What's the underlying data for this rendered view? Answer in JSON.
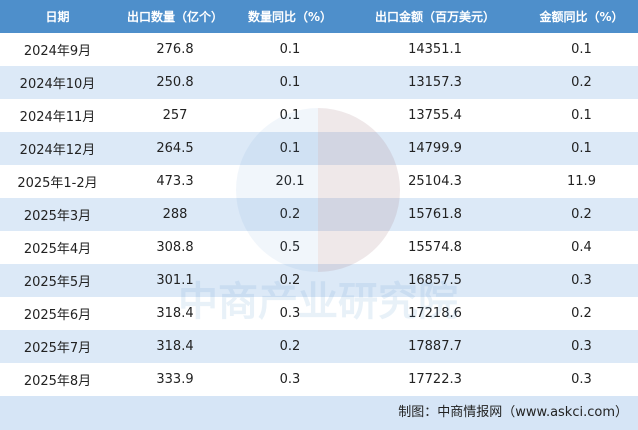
{
  "table": {
    "header": [
      "日期",
      "出口数量（亿个）",
      "数量同比（%）",
      "出口金额（百万美元）",
      "金额同比（%）"
    ],
    "rows": [
      [
        "2024年9月",
        "276.8",
        "0.1",
        "14351.1",
        "0.1"
      ],
      [
        "2024年10月",
        "250.8",
        "0.1",
        "13157.3",
        "0.2"
      ],
      [
        "2024年11月",
        "257",
        "0.1",
        "13755.4",
        "0.1"
      ],
      [
        "2024年12月",
        "264.5",
        "0.1",
        "14799.9",
        "0.1"
      ],
      [
        "2025年1-2月",
        "473.3",
        "20.1",
        "25104.3",
        "11.9"
      ],
      [
        "2025年3月",
        "288",
        "0.2",
        "15761.8",
        "0.2"
      ],
      [
        "2025年4月",
        "308.8",
        "0.5",
        "15574.8",
        "0.4"
      ],
      [
        "2025年5月",
        "301.1",
        "0.2",
        "16857.5",
        "0.3"
      ],
      [
        "2025年6月",
        "318.4",
        "0.3",
        "17218.6",
        "0.2"
      ],
      [
        "2025年7月",
        "318.4",
        "0.2",
        "17887.7",
        "0.3"
      ],
      [
        "2025年8月",
        "333.9",
        "0.3",
        "17722.3",
        "0.3"
      ]
    ],
    "source": "制图：中商情报网（www.askci.com）"
  },
  "watermark": "中商产业研究院"
}
